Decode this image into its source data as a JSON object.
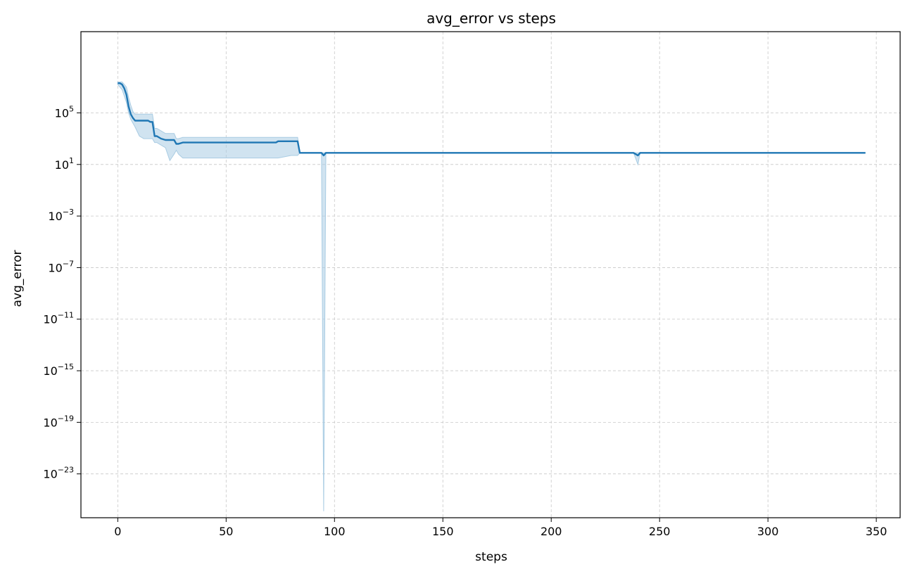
{
  "chart_data": {
    "type": "line",
    "title": "avg_error vs steps",
    "xlabel": "steps",
    "ylabel": "avg_error",
    "xlim": [
      -17,
      361
    ],
    "ylim_log10": [
      -26.4,
      11.3
    ],
    "yscale": "log",
    "grid": true,
    "colors": {
      "line": "#1f77b4",
      "band": "#a9cce3",
      "grid": "#c8c8c8"
    },
    "x_ticks": [
      0,
      50,
      100,
      150,
      200,
      250,
      300,
      350
    ],
    "x_tick_labels": [
      "0",
      "50",
      "100",
      "150",
      "200",
      "250",
      "300",
      "350"
    ],
    "y_ticks_log10": [
      5,
      1,
      -3,
      -7,
      -11,
      -15,
      -19,
      -23
    ],
    "y_tick_labels": [
      {
        "base": "10",
        "exp": "5"
      },
      {
        "base": "10",
        "exp": "1"
      },
      {
        "base": "10",
        "exp": "−3"
      },
      {
        "base": "10",
        "exp": "−7"
      },
      {
        "base": "10",
        "exp": "−11"
      },
      {
        "base": "10",
        "exp": "−15"
      },
      {
        "base": "10",
        "exp": "−19"
      },
      {
        "base": "10",
        "exp": "−23"
      }
    ],
    "series": [
      {
        "x": [
          0,
          1,
          2,
          3,
          4,
          5,
          6,
          7,
          8,
          10,
          12,
          14,
          15,
          16,
          17,
          18,
          20,
          22,
          24,
          26,
          27,
          28,
          30,
          40,
          60,
          73,
          74,
          80,
          83,
          84,
          94,
          95,
          96,
          236,
          238,
          240,
          241,
          345
        ],
        "y_log10": [
          7.3,
          7.3,
          7.2,
          6.9,
          6.4,
          5.5,
          4.9,
          4.6,
          4.4,
          4.4,
          4.4,
          4.4,
          4.3,
          4.3,
          3.2,
          3.2,
          3.0,
          2.9,
          2.9,
          2.9,
          2.6,
          2.6,
          2.7,
          2.7,
          2.7,
          2.7,
          2.8,
          2.8,
          2.8,
          1.9,
          1.9,
          1.7,
          1.9,
          1.9,
          1.9,
          1.7,
          1.9,
          1.9
        ],
        "lower_log10": [
          7.2,
          7.0,
          6.8,
          6.3,
          5.8,
          5.0,
          4.5,
          4.2,
          3.9,
          3.2,
          3.0,
          3.0,
          3.0,
          3.0,
          2.7,
          2.7,
          2.5,
          2.3,
          1.3,
          1.8,
          2.1,
          1.8,
          1.5,
          1.5,
          1.5,
          1.5,
          1.5,
          1.7,
          1.7,
          1.9,
          1.9,
          -25.9,
          1.9,
          1.9,
          1.9,
          1.0,
          1.9,
          1.9
        ],
        "upper_log10": [
          7.4,
          7.4,
          7.4,
          7.2,
          7.0,
          6.2,
          5.6,
          5.1,
          4.9,
          4.9,
          4.9,
          4.9,
          4.9,
          4.9,
          3.8,
          3.8,
          3.6,
          3.4,
          3.4,
          3.4,
          3.0,
          3.0,
          3.1,
          3.1,
          3.1,
          3.1,
          3.1,
          3.1,
          3.1,
          1.9,
          1.9,
          1.9,
          1.9,
          1.9,
          1.9,
          1.9,
          1.9,
          1.9
        ]
      }
    ]
  }
}
